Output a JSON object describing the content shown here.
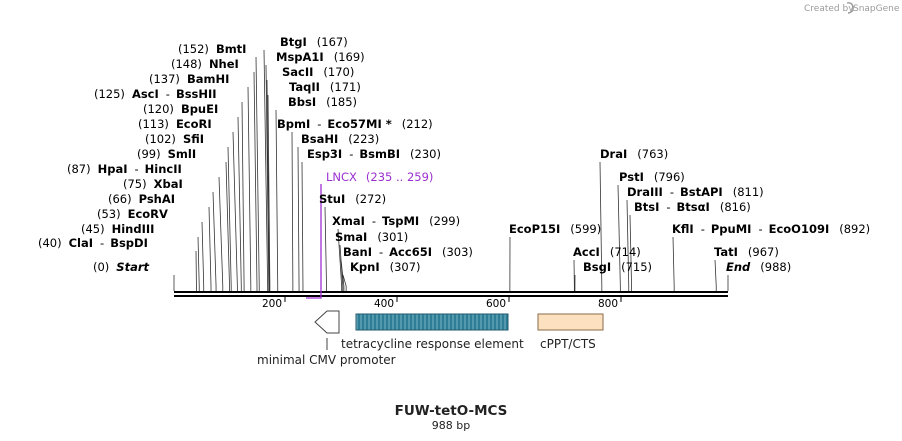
{
  "credit": "Created by",
  "credit_brand": "SnapGene",
  "title": "FUW-tetO-MCS",
  "subtitle": "988 bp",
  "sequence_length": 988,
  "ticks": [
    "200",
    "400",
    "600",
    "800"
  ],
  "sites": [
    {
      "pos": "(0)",
      "name": "Start",
      "italic": true
    },
    {
      "pos": "(40)",
      "name": "ClaI",
      "alias": "BspDI"
    },
    {
      "pos": "(45)",
      "name": "HindIII"
    },
    {
      "pos": "(53)",
      "name": "EcoRV"
    },
    {
      "pos": "(66)",
      "name": "PshAI"
    },
    {
      "pos": "(75)",
      "name": "XbaI"
    },
    {
      "pos": "(87)",
      "name": "HpaI",
      "alias": "HincII"
    },
    {
      "pos": "(99)",
      "name": "SmlI"
    },
    {
      "pos": "(102)",
      "name": "SfiI"
    },
    {
      "pos": "(113)",
      "name": "EcoRI"
    },
    {
      "pos": "(120)",
      "name": "BpuEI"
    },
    {
      "pos": "(125)",
      "name": "AscI",
      "alias": "BssHII"
    },
    {
      "pos": "(137)",
      "name": "BamHI"
    },
    {
      "pos": "(148)",
      "name": "NheI"
    },
    {
      "pos": "(152)",
      "name": "BmtI"
    },
    {
      "pos": "(167)",
      "name": "BtgI"
    },
    {
      "pos": "(169)",
      "name": "MspA1I"
    },
    {
      "pos": "(170)",
      "name": "SacII"
    },
    {
      "pos": "(171)",
      "name": "TaqII"
    },
    {
      "pos": "(185)",
      "name": "BbsI"
    },
    {
      "pos": "(212)",
      "name": "BpmI",
      "alias": "Eco57MI *"
    },
    {
      "pos": "(223)",
      "name": "BsaHI"
    },
    {
      "pos": "(230)",
      "name": "Esp3I",
      "alias": "BsmBI"
    },
    {
      "pos": "(272)",
      "name": "StuI"
    },
    {
      "pos": "(299)",
      "name": "XmaI",
      "alias": "TspMI"
    },
    {
      "pos": "(301)",
      "name": "SmaI"
    },
    {
      "pos": "(303)",
      "name": "BanI",
      "alias": "Acc65I"
    },
    {
      "pos": "(307)",
      "name": "KpnI"
    },
    {
      "pos": "(599)",
      "name": "EcoP15I"
    },
    {
      "pos": "(714)",
      "name": "AccI"
    },
    {
      "pos": "(715)",
      "name": "BsgI"
    },
    {
      "pos": "(763)",
      "name": "DraI"
    },
    {
      "pos": "(796)",
      "name": "PstI"
    },
    {
      "pos": "(811)",
      "name": "DraIII",
      "alias": "BstAPI"
    },
    {
      "pos": "(816)",
      "name": "BtsI",
      "alias": "BtsαI"
    },
    {
      "pos": "(892)",
      "name": "KflI",
      "alias": "PpuMI",
      "alias2": "EcoO109I"
    },
    {
      "pos": "(967)",
      "name": "TatI"
    },
    {
      "pos": "(988)",
      "name": "End",
      "italic": true
    }
  ],
  "primer": {
    "name": "LNCX",
    "range": "(235 .. 259)",
    "color": "#9b30d0"
  },
  "features": [
    {
      "name": "minimal CMV promoter",
      "color": "#ffffff"
    },
    {
      "name": "tetracycline response element",
      "color": "#2e7d96"
    },
    {
      "name": "cPPT/CTS",
      "color": "#fde0c0"
    }
  ]
}
